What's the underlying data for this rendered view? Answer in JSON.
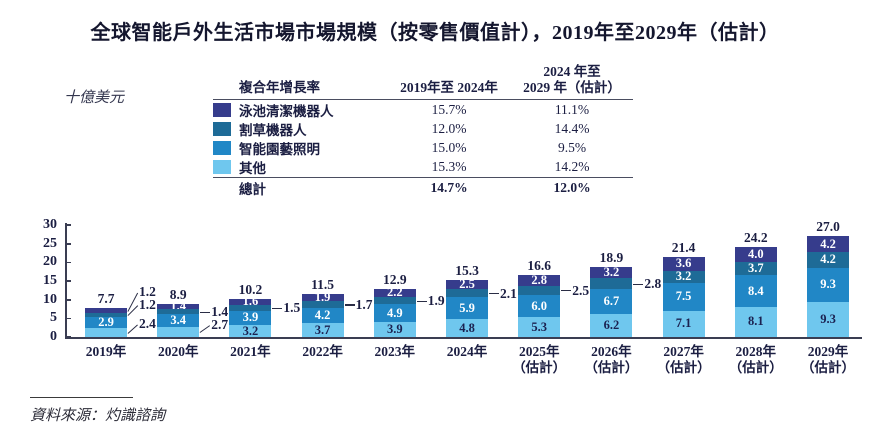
{
  "header": {
    "title": "全球智能戶外生活市場市場規模（按零售價值計），2019年至2029年（估計）"
  },
  "footer": {
    "source_label": "資料來源：灼識諮詢"
  },
  "chart_data": {
    "type": "bar",
    "stacked": true,
    "title": "全球智能戶外生活市場市場規模（按零售價值計），2019年至2029年（估計）",
    "ylabel": "十億美元",
    "unit_label": "十億美元",
    "ylim": [
      0,
      30
    ],
    "y_ticks": [
      0,
      5,
      10,
      15,
      20,
      25,
      30
    ],
    "grid": false,
    "legend_position": "top-table",
    "stack_note": "series listed top-to-bottom within each bar",
    "categories": [
      {
        "label": "2019年",
        "sublabel": ""
      },
      {
        "label": "2020年",
        "sublabel": ""
      },
      {
        "label": "2021年",
        "sublabel": ""
      },
      {
        "label": "2022年",
        "sublabel": ""
      },
      {
        "label": "2023年",
        "sublabel": ""
      },
      {
        "label": "2024年",
        "sublabel": ""
      },
      {
        "label": "2025年",
        "sublabel": "（估計）"
      },
      {
        "label": "2026年",
        "sublabel": "（估計）"
      },
      {
        "label": "2027年",
        "sublabel": "（估計）"
      },
      {
        "label": "2028年",
        "sublabel": "（估計）"
      },
      {
        "label": "2029年",
        "sublabel": "（估計）"
      }
    ],
    "series": [
      {
        "name": "泳池清潔機器人",
        "color": "#363c8c",
        "label_color": "#ffffff",
        "values": [
          1.2,
          1.4,
          1.6,
          1.9,
          2.2,
          2.5,
          2.8,
          3.2,
          3.6,
          4.0,
          4.2
        ]
      },
      {
        "name": "割草機器人",
        "color": "#1e6b97",
        "label_color": "#ffffff",
        "values": [
          1.2,
          1.4,
          1.5,
          1.7,
          1.9,
          2.1,
          2.5,
          2.8,
          3.2,
          3.7,
          4.2
        ]
      },
      {
        "name": "智能園藝照明",
        "color": "#2187c6",
        "label_color": "#ffffff",
        "values": [
          2.9,
          3.4,
          3.9,
          4.2,
          4.9,
          5.9,
          6.0,
          6.7,
          7.5,
          8.4,
          9.3
        ]
      },
      {
        "name": "其他",
        "color": "#6fc7ee",
        "label_color": "#1b2150",
        "values": [
          2.4,
          2.7,
          3.2,
          3.7,
          3.9,
          4.8,
          5.3,
          6.2,
          7.1,
          8.1,
          9.3
        ]
      }
    ],
    "totals": [
      7.7,
      8.9,
      10.2,
      11.5,
      12.9,
      15.3,
      16.6,
      18.9,
      21.4,
      24.2,
      27.0
    ],
    "callouts": [
      [
        0,
        1,
        3
      ],
      [
        1,
        3
      ],
      [
        1
      ],
      [
        1
      ],
      [
        1
      ],
      [
        1
      ],
      [
        1
      ],
      [
        1
      ],
      [],
      [],
      []
    ],
    "cagr_table": {
      "header": {
        "col1": "複合年增長率",
        "col2": "2019年至 2024年",
        "col3_line1": "2024 年至",
        "col3_line2": "2029 年（估計）"
      },
      "rows": [
        {
          "label": "泳池清潔機器人",
          "cagr_2019_2024": "15.7%",
          "cagr_2024_2029": "11.1%"
        },
        {
          "label": "割草機器人",
          "cagr_2019_2024": "12.0%",
          "cagr_2024_2029": "14.4%"
        },
        {
          "label": "智能園藝照明",
          "cagr_2019_2024": "15.0%",
          "cagr_2024_2029": "9.5%"
        },
        {
          "label": "其他",
          "cagr_2019_2024": "15.3%",
          "cagr_2024_2029": "14.2%"
        }
      ],
      "total_row": {
        "label": "總計",
        "cagr_2019_2024": "14.7%",
        "cagr_2024_2029": "12.0%"
      }
    }
  }
}
